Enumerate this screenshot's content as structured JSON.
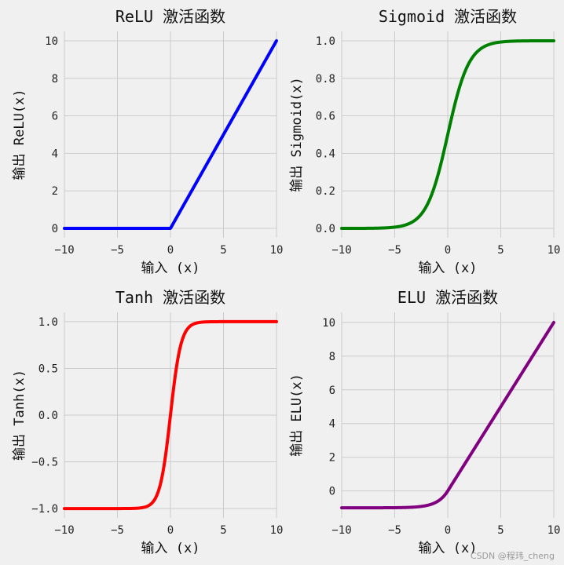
{
  "watermark": "CSDN @程玮_cheng",
  "chart_data": [
    {
      "type": "line",
      "title": "ReLU 激活函数",
      "xlabel": "输入 (x)",
      "ylabel": "输出 ReLU(x)",
      "color": "#0000ff",
      "func": "relu",
      "xlim": [
        -10,
        10
      ],
      "ylim": [
        -0.5,
        10.5
      ],
      "xticks": [
        -10,
        -5,
        0,
        5,
        10
      ],
      "yticks": [
        0,
        2,
        4,
        6,
        8,
        10
      ],
      "ytick_labels": [
        "0",
        "2",
        "4",
        "6",
        "8",
        "10"
      ],
      "series": [
        {
          "x": [
            -10,
            -5,
            0,
            5,
            10
          ],
          "values": [
            0,
            0,
            0,
            5,
            10
          ]
        }
      ],
      "grid": true
    },
    {
      "type": "line",
      "title": "Sigmoid 激活函数",
      "xlabel": "输入 (x)",
      "ylabel": "输出 Sigmoid(x)",
      "color": "#008000",
      "func": "sigmoid",
      "xlim": [
        -10,
        10
      ],
      "ylim": [
        -0.05,
        1.05
      ],
      "xticks": [
        -10,
        -5,
        0,
        5,
        10
      ],
      "yticks": [
        0.0,
        0.2,
        0.4,
        0.6,
        0.8,
        1.0
      ],
      "ytick_labels": [
        "0.0",
        "0.2",
        "0.4",
        "0.6",
        "0.8",
        "1.0"
      ],
      "series": [
        {
          "x": [
            -10,
            -5,
            -2.5,
            0,
            2.5,
            5,
            10
          ],
          "values": [
            0.0,
            0.007,
            0.076,
            0.5,
            0.924,
            0.993,
            1.0
          ]
        }
      ],
      "grid": true
    },
    {
      "type": "line",
      "title": "Tanh 激活函数",
      "xlabel": "输入 (x)",
      "ylabel": "输出 Tanh(x)",
      "color": "#ff0000",
      "func": "tanh",
      "xlim": [
        -10,
        10
      ],
      "ylim": [
        -1.1,
        1.1
      ],
      "xticks": [
        -10,
        -5,
        0,
        5,
        10
      ],
      "yticks": [
        -1.0,
        -0.5,
        0.0,
        0.5,
        1.0
      ],
      "ytick_labels": [
        "−1.0",
        "−0.5",
        "0.0",
        "0.5",
        "1.0"
      ],
      "series": [
        {
          "x": [
            -10,
            -2,
            -1,
            0,
            1,
            2,
            10
          ],
          "values": [
            -1.0,
            -0.964,
            -0.762,
            0.0,
            0.762,
            0.964,
            1.0
          ]
        }
      ],
      "grid": true
    },
    {
      "type": "line",
      "title": "ELU 激活函数",
      "xlabel": "输入 (x)",
      "ylabel": "输出 ELU(x)",
      "color": "#800080",
      "func": "elu",
      "xlim": [
        -10,
        10
      ],
      "ylim": [
        -1.6,
        10.6
      ],
      "xticks": [
        -10,
        -5,
        0,
        5,
        10
      ],
      "yticks": [
        0,
        2,
        4,
        6,
        8,
        10
      ],
      "ytick_labels": [
        "0",
        "2",
        "4",
        "6",
        "8",
        "10"
      ],
      "series": [
        {
          "x": [
            -10,
            -5,
            -2,
            0,
            5,
            10
          ],
          "values": [
            -1.0,
            -0.993,
            -0.865,
            0,
            5,
            10
          ]
        }
      ],
      "grid": true
    }
  ]
}
